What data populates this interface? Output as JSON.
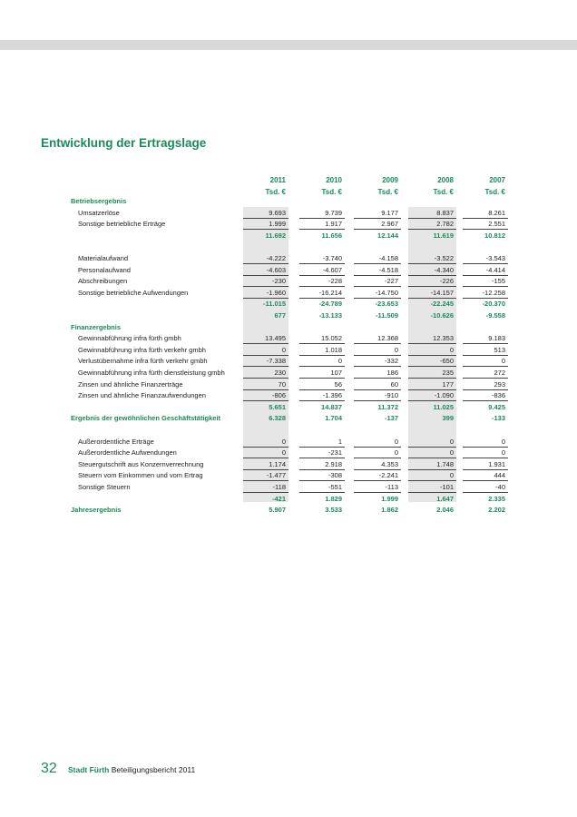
{
  "header": {
    "title": "Entwicklung der Ertragslage"
  },
  "table": {
    "years": [
      "2011",
      "2010",
      "2009",
      "2008",
      "2007"
    ],
    "units": [
      "Tsd. €",
      "Tsd. €",
      "Tsd. €",
      "Tsd. €",
      "Tsd. €"
    ],
    "blocks": [
      {
        "heading": "Betriebsergebnis",
        "rows": [
          {
            "label": "Umsatzerlöse",
            "values": [
              "9.693",
              "9.739",
              "9.177",
              "8.837",
              "8.261"
            ]
          },
          {
            "label": "Sonstige betriebliche Erträge",
            "values": [
              "1.999",
              "1.917",
              "2.967",
              "2.782",
              "2.551"
            ]
          },
          {
            "total": true,
            "values": [
              "11.692",
              "11.656",
              "12.144",
              "11.619",
              "10.812"
            ]
          }
        ]
      },
      {
        "rows": [
          {
            "label": "Materialaufwand",
            "values": [
              "-4.222",
              "-3.740",
              "-4.158",
              "-3.522",
              "-3.543"
            ]
          },
          {
            "label": "Personalaufwand",
            "values": [
              "-4.603",
              "-4.607",
              "-4.518",
              "-4.340",
              "-4.414"
            ]
          },
          {
            "label": "Abschreibungen",
            "values": [
              "-230",
              "-228",
              "-227",
              "-226",
              "-155"
            ]
          },
          {
            "label": "Sonstige betriebliche Aufwendungen",
            "values": [
              "-1.960",
              "-16.214",
              "-14.750",
              "-14.157",
              "-12.258"
            ]
          },
          {
            "total": true,
            "values": [
              "-11.015",
              "-24.789",
              "-23.653",
              "-22.245",
              "-20.370"
            ]
          },
          {
            "total": true,
            "values": [
              "677",
              "-13.133",
              "-11.509",
              "-10.626",
              "-9.558"
            ]
          }
        ]
      },
      {
        "heading": "Finanzergebnis",
        "rows": [
          {
            "label": "Gewinnabführung infra fürth gmbh",
            "values": [
              "13.495",
              "15.052",
              "12.368",
              "12.353",
              "9.183"
            ]
          },
          {
            "label": "Gewinnabführung infra fürth verkehr gmbh",
            "values": [
              "0",
              "1.018",
              "0",
              "0",
              "513"
            ]
          },
          {
            "label": "Verlustübernahme infra fürth verkehr gmbh",
            "values": [
              "-7.338",
              "0",
              "-332",
              "-650",
              "0"
            ]
          },
          {
            "label": "Gewinnabführung infra fürth dienstleistung gmbh",
            "values": [
              "230",
              "107",
              "186",
              "235",
              "272"
            ]
          },
          {
            "label": "Zinsen und ähnliche Finanzerträge",
            "values": [
              "70",
              "56",
              "60",
              "177",
              "293"
            ]
          },
          {
            "label": "Zinsen und ähnliche Finanzaufwendungen",
            "values": [
              "-806",
              "-1.396",
              "-910",
              "-1.090",
              "-836"
            ]
          },
          {
            "total": true,
            "values": [
              "5.651",
              "14.837",
              "11.372",
              "11.025",
              "9.425"
            ]
          },
          {
            "total": true,
            "label": "Ergebnis der gewöhnlichen Geschäftstätigkeit",
            "values": [
              "6.328",
              "1.704",
              "-137",
              "399",
              "-133"
            ]
          }
        ]
      },
      {
        "rows": [
          {
            "label": "Außerordentliche Erträge",
            "values": [
              "0",
              "1",
              "0",
              "0",
              "0"
            ]
          },
          {
            "label": "Außerordentliche Aufwendungen",
            "values": [
              "0",
              "-231",
              "0",
              "0",
              "0"
            ]
          },
          {
            "label": "Steuergutschrift aus Konzernverrechnung",
            "values": [
              "1.174",
              "2.918",
              "4.353",
              "1.748",
              "1.931"
            ]
          },
          {
            "label": "Steuern vom Einkommen und vom Ertrag",
            "values": [
              "-1.477",
              "-308",
              "-2.241",
              "0",
              "444"
            ]
          },
          {
            "label": "Sonstige Steuern",
            "values": [
              "-118",
              "-551",
              "-113",
              "-101",
              "-40"
            ]
          },
          {
            "total": true,
            "values": [
              "-421",
              "1.829",
              "1.999",
              "1.647",
              "2.335"
            ]
          },
          {
            "total": true,
            "label": "Jahresergebnis",
            "values": [
              "5.907",
              "3.533",
              "1.862",
              "2.046",
              "2.202"
            ]
          }
        ]
      }
    ]
  },
  "footer": {
    "page": "32",
    "brand": "Stadt Fürth",
    "report": "Beteiligungsbericht 2011"
  }
}
